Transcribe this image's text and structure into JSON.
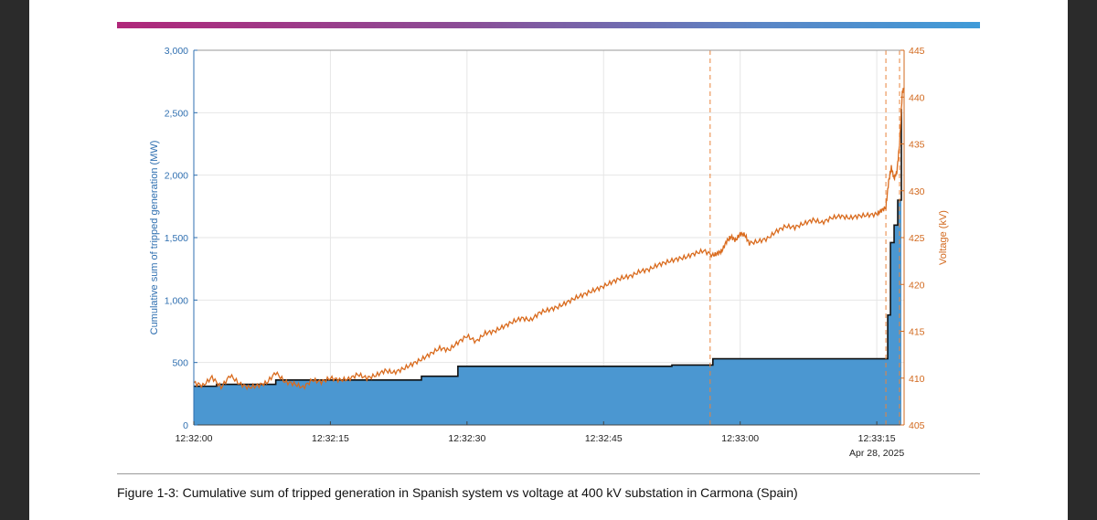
{
  "figure": {
    "caption": "Figure 1-3: Cumulative sum of tripped generation in Spanish system vs voltage at 400 kV substation in Carmona (Spain)"
  },
  "colors": {
    "area_fill": "#4b97d1",
    "step_line": "#111111",
    "voltage_line": "#d96b1e",
    "event_line": "#e8843c",
    "left_axis": "#2f6fb0",
    "right_axis": "#d2691e"
  },
  "chart_data": {
    "type": "area+line",
    "title": "",
    "x_unit": "seconds after 12:32:00",
    "xlim": [
      0,
      78
    ],
    "xticks": [
      0,
      15,
      30,
      45,
      60,
      75
    ],
    "xtick_labels": [
      "12:32:00",
      "12:32:15",
      "12:32:30",
      "12:32:45",
      "12:33:00",
      "12:33:15"
    ],
    "date_label": "Apr 28, 2025",
    "left_axis": {
      "label": "Cumulative sum of tripped generation (MW)",
      "ylim": [
        0,
        3000
      ],
      "ticks": [
        0,
        500,
        1000,
        1500,
        2000,
        2500,
        3000
      ],
      "tick_labels": [
        "0",
        "500",
        "1,000",
        "1,500",
        "2,000",
        "2,500",
        "3,000"
      ]
    },
    "right_axis": {
      "label": "Voltage (kV)",
      "ylim": [
        405,
        445
      ],
      "ticks": [
        405,
        410,
        415,
        420,
        425,
        430,
        435,
        440,
        445
      ],
      "tick_labels": [
        "405",
        "410",
        "415",
        "420",
        "425",
        "430",
        "435",
        "440",
        "445"
      ]
    },
    "series": [
      {
        "name": "Cumulative sum of tripped generation (MW)",
        "axis": "left",
        "kind": "step-area",
        "x": [
          0,
          2.5,
          9.0,
          25.0,
          29.0,
          48.5,
          52.5,
          57.0,
          76.2,
          76.5,
          76.9,
          77.3,
          77.7
        ],
        "values": [
          310,
          325,
          360,
          390,
          470,
          470,
          480,
          530,
          880,
          1460,
          1600,
          1800,
          2530
        ]
      },
      {
        "name": "Voltage at Carmona 400 kV (kV)",
        "axis": "right",
        "kind": "line",
        "x": [
          0,
          1,
          2,
          3,
          4,
          5,
          6,
          7,
          8,
          9,
          10,
          11,
          12,
          13,
          14,
          15,
          16,
          17,
          18,
          19,
          20,
          21,
          22,
          23,
          24,
          25,
          26,
          27,
          28,
          29,
          30,
          31,
          32,
          33,
          34,
          35,
          36,
          37,
          38,
          39,
          40,
          41,
          42,
          43,
          44,
          45,
          46,
          47,
          48,
          49,
          50,
          51,
          52,
          53,
          54,
          55,
          56,
          57,
          57.5,
          58,
          58.5,
          59,
          59.5,
          60,
          60.5,
          61,
          62,
          63,
          64,
          65,
          66,
          67,
          68,
          69,
          70,
          71,
          72,
          73,
          74,
          75,
          75.5,
          76,
          76.3,
          76.6,
          76.9,
          77.2,
          77.5,
          77.8,
          78
        ],
        "values": [
          409.5,
          409.2,
          410.1,
          409.0,
          410.3,
          409.4,
          409.0,
          409.2,
          409.5,
          410.6,
          409.6,
          409.4,
          409.0,
          409.8,
          409.6,
          410.0,
          409.8,
          409.9,
          410.4,
          410.0,
          410.3,
          410.8,
          410.6,
          411.0,
          411.5,
          412.0,
          412.6,
          413.2,
          413.0,
          413.8,
          414.5,
          413.9,
          414.8,
          415.0,
          415.5,
          416.0,
          416.4,
          416.2,
          417.0,
          417.3,
          417.6,
          418.1,
          418.6,
          419.0,
          419.4,
          419.8,
          420.3,
          420.7,
          420.9,
          421.4,
          421.6,
          422.1,
          422.4,
          422.7,
          422.9,
          423.3,
          423.6,
          423.1,
          423.3,
          423.6,
          424.6,
          425.1,
          424.7,
          425.4,
          425.3,
          424.4,
          424.6,
          424.9,
          425.7,
          426.2,
          426.1,
          426.5,
          426.9,
          426.6,
          427.1,
          427.3,
          427.1,
          427.3,
          427.4,
          427.5,
          427.9,
          428.2,
          431.0,
          432.5,
          431.3,
          432.0,
          435.0,
          440.5,
          441.0
        ]
      }
    ],
    "event_markers_x": [
      56.7,
      76.0,
      77.5
    ]
  }
}
